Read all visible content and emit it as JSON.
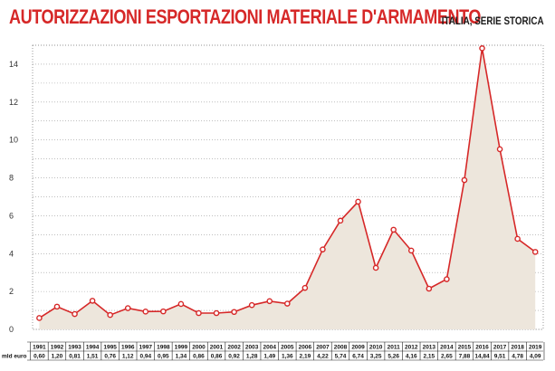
{
  "header": {
    "title": "AUTORIZZAZIONI ESPORTAZIONI MATERIALE D'ARMAMENTO",
    "subtitle": "ITALIA, SERIE STORICA"
  },
  "colors": {
    "accent": "#d62828",
    "fill": "#ede6dc",
    "grid": "#999999"
  },
  "chart_data": {
    "type": "area",
    "title": "AUTORIZZAZIONI ESPORTAZIONI MATERIALE D'ARMAMENTO",
    "subtitle": "ITALIA, SERIE STORICA",
    "xlabel": "",
    "ylabel": "",
    "ylim": [
      0,
      15
    ],
    "yticks": [
      0,
      2,
      4,
      6,
      8,
      10,
      12,
      14
    ],
    "grid": true,
    "value_row_label": "mld euro",
    "categories": [
      "1991",
      "1992",
      "1993",
      "1994",
      "1995",
      "1996",
      "1997",
      "1998",
      "1999",
      "2000",
      "2001",
      "2002",
      "2003",
      "2004",
      "2005",
      "2006",
      "2007",
      "2008",
      "2009",
      "2010",
      "2011",
      "2012",
      "2013",
      "2014",
      "2015",
      "2016",
      "2017",
      "2018",
      "2019"
    ],
    "value_labels": [
      "0,60",
      "1,20",
      "0,81",
      "1,51",
      "0,76",
      "1,12",
      "0,94",
      "0,95",
      "1,34",
      "0,86",
      "0,86",
      "0,92",
      "1,28",
      "1,49",
      "1,36",
      "2,19",
      "4,22",
      "5,74",
      "6,74",
      "3,25",
      "5,26",
      "4,16",
      "2,15",
      "2,65",
      "7,88",
      "14,84",
      "9,51",
      "4,78",
      "4,09"
    ],
    "values": [
      0.6,
      1.2,
      0.81,
      1.51,
      0.76,
      1.12,
      0.94,
      0.95,
      1.34,
      0.86,
      0.86,
      0.92,
      1.28,
      1.49,
      1.36,
      2.19,
      4.22,
      5.74,
      6.74,
      3.25,
      5.26,
      4.16,
      2.15,
      2.65,
      7.88,
      14.84,
      9.51,
      4.78,
      4.09
    ]
  }
}
